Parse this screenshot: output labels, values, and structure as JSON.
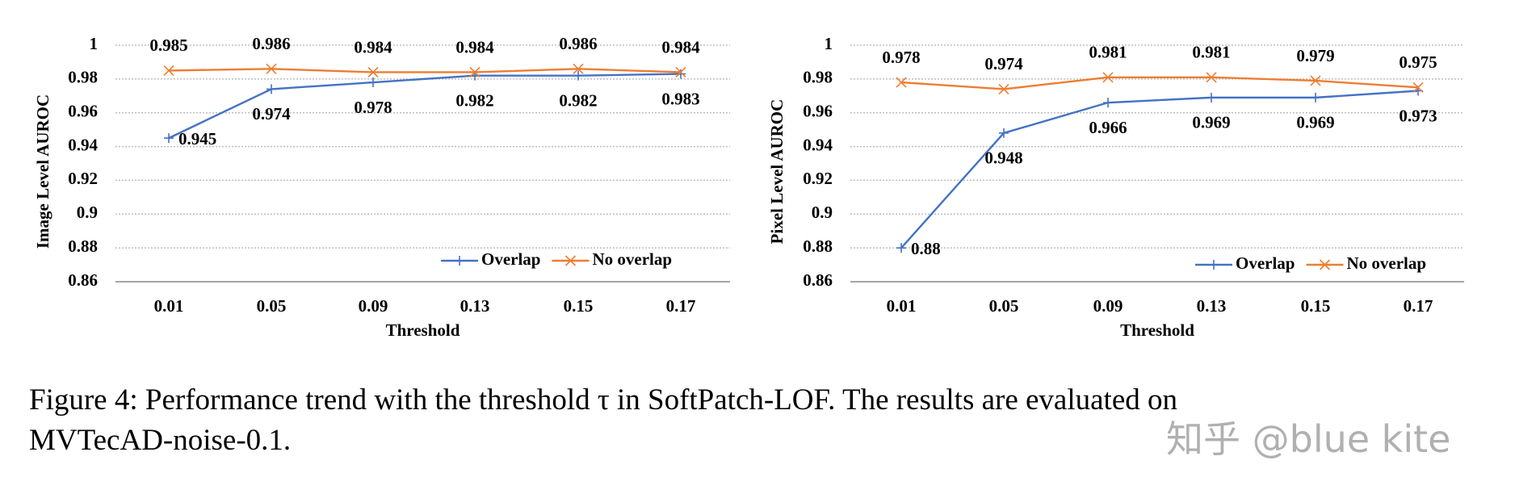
{
  "chart_data": [
    {
      "type": "line",
      "xlabel": "Threshold",
      "ylabel": "Image Level AUROC",
      "categories": [
        "0.01",
        "0.05",
        "0.09",
        "0.13",
        "0.15",
        "0.17"
      ],
      "ylim": [
        0.86,
        1
      ],
      "yticks": [
        "0.86",
        "0.88",
        "0.9",
        "0.92",
        "0.94",
        "0.96",
        "0.98",
        "1"
      ],
      "grid": true,
      "legend": "bottom-right",
      "series": [
        {
          "name": "Overlap",
          "color": "#4472C4",
          "marker": "plus",
          "values": [
            0.945,
            0.974,
            0.978,
            0.982,
            0.982,
            0.983
          ],
          "labels": [
            "0.945",
            "0.974",
            "0.978",
            "0.982",
            "0.982",
            "0.983"
          ]
        },
        {
          "name": "No overlap",
          "color": "#ED7D31",
          "marker": "x",
          "values": [
            0.985,
            0.986,
            0.984,
            0.984,
            0.986,
            0.984
          ],
          "labels": [
            "0.985",
            "0.986",
            "0.984",
            "0.984",
            "0.986",
            "0.984"
          ]
        }
      ]
    },
    {
      "type": "line",
      "xlabel": "Threshold",
      "ylabel": "Pixel Level AUROC",
      "categories": [
        "0.01",
        "0.05",
        "0.09",
        "0.13",
        "0.15",
        "0.17"
      ],
      "ylim": [
        0.86,
        1
      ],
      "yticks": [
        "0.86",
        "0.88",
        "0.9",
        "0.92",
        "0.94",
        "0.96",
        "0.98",
        "1"
      ],
      "grid": true,
      "legend": "bottom-right",
      "series": [
        {
          "name": "Overlap",
          "color": "#4472C4",
          "marker": "plus",
          "values": [
            0.88,
            0.948,
            0.966,
            0.969,
            0.969,
            0.973
          ],
          "labels": [
            "0.88",
            "0.948",
            "0.966",
            "0.969",
            "0.969",
            "0.973"
          ]
        },
        {
          "name": "No overlap",
          "color": "#ED7D31",
          "marker": "x",
          "values": [
            0.978,
            0.974,
            0.981,
            0.981,
            0.979,
            0.975
          ],
          "labels": [
            "0.978",
            "0.974",
            "0.981",
            "0.981",
            "0.979",
            "0.975"
          ]
        }
      ]
    }
  ],
  "caption": {
    "line1": "Figure 4: Performance trend with the threshold τ in SoftPatch-LOF. The results are evaluated on",
    "line2": "MVTecAD-noise-0.1."
  },
  "watermark": "知乎 @blue kite"
}
